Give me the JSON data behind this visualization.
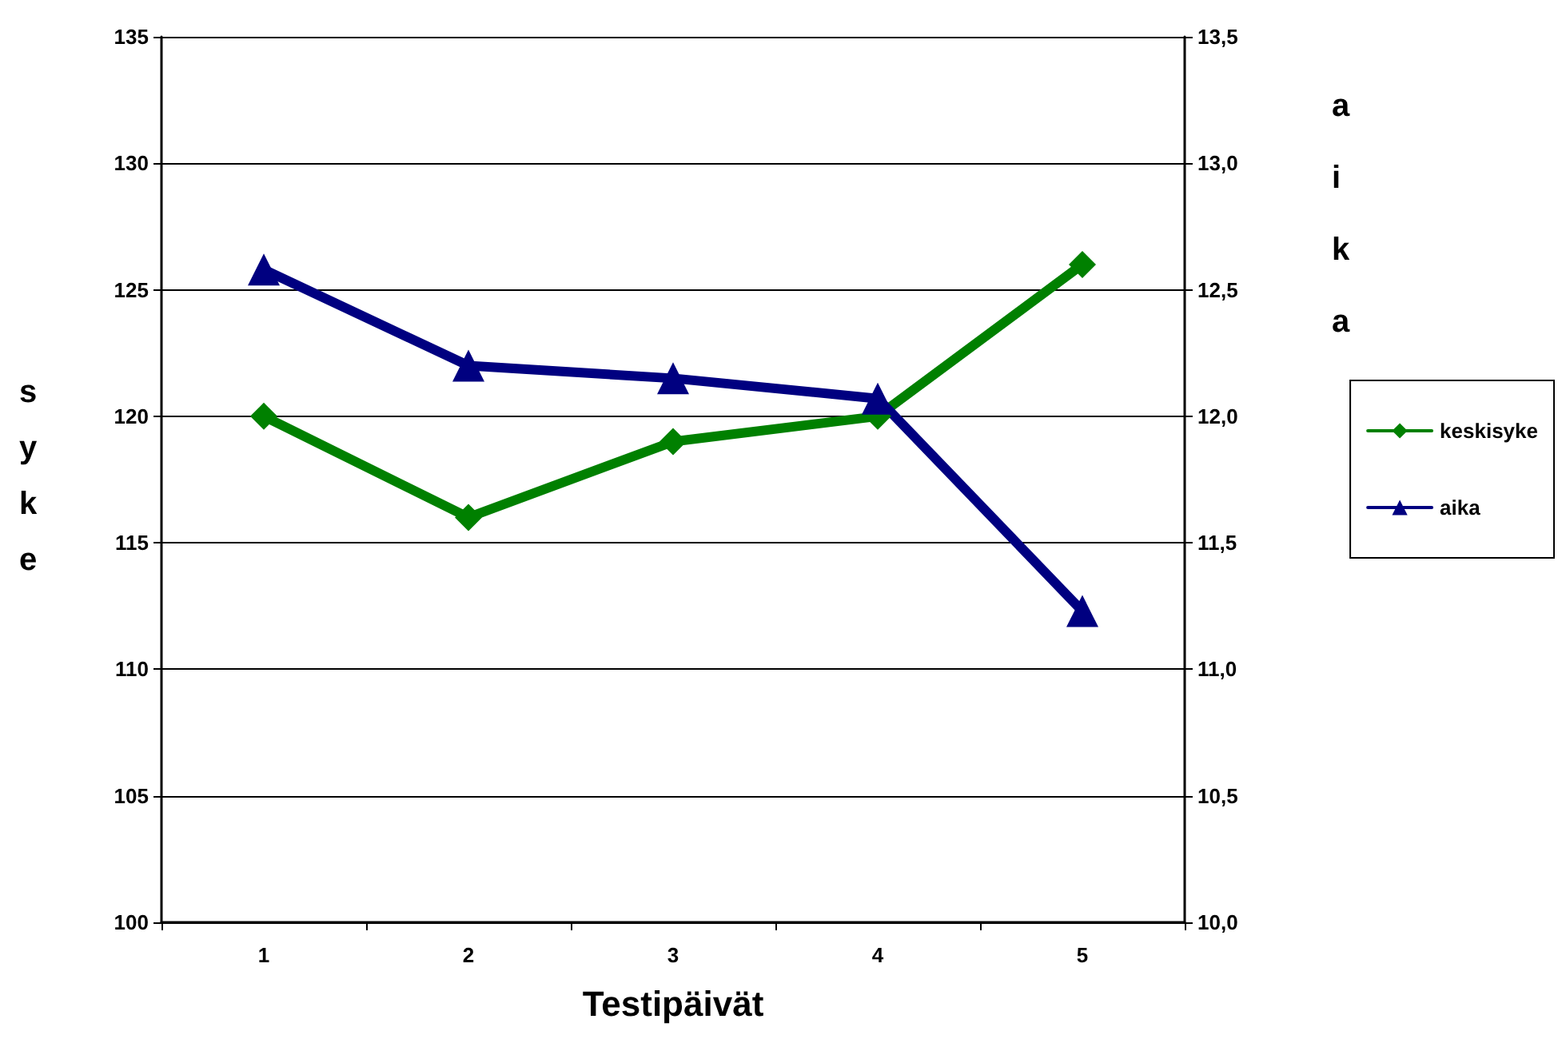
{
  "chart_data": {
    "type": "line",
    "xlabel": "Testipäivät",
    "ylabel": "syke",
    "y2label": "aika",
    "categories": [
      "1",
      "2",
      "3",
      "4",
      "5"
    ],
    "series": [
      {
        "name": "keskisyke",
        "color": "#008000",
        "marker": "diamond",
        "values": [
          120,
          116,
          119,
          120,
          126
        ]
      },
      {
        "name": "aika",
        "color": "#000080",
        "marker": "triangle",
        "axis": "y2",
        "values": [
          12.58,
          12.2,
          12.15,
          12.07,
          11.23
        ]
      }
    ],
    "ylim": [
      100,
      135
    ],
    "yticks": [
      100,
      105,
      110,
      115,
      120,
      125,
      130,
      135
    ],
    "y2lim": [
      10,
      13.5
    ],
    "y2ticks": [
      {
        "value": 10,
        "label": "10,0"
      },
      {
        "value": 10.5,
        "label": "10,5"
      },
      {
        "value": 11,
        "label": "11,0"
      },
      {
        "value": 11.5,
        "label": "11,5"
      },
      {
        "value": 12,
        "label": "12,0"
      },
      {
        "value": 12.5,
        "label": "12,5"
      },
      {
        "value": 13,
        "label": "13,0"
      },
      {
        "value": 13.5,
        "label": "13,5"
      }
    ],
    "grid": "y",
    "legend": "right",
    "line_style": "solid"
  }
}
